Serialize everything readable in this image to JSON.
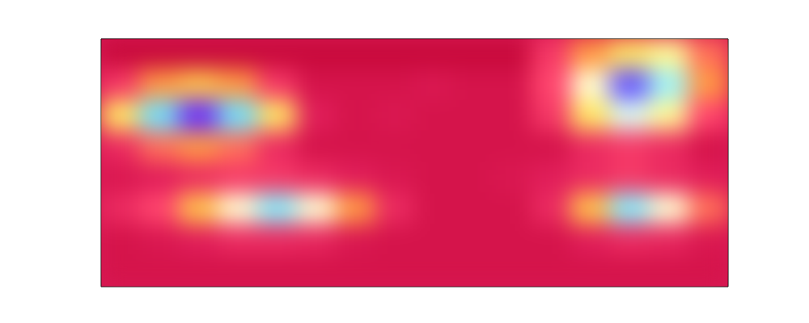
{
  "chart_data": {
    "type": "heatmap",
    "x": [
      0.5,
      1.5,
      2.5,
      3.5,
      4.5,
      5.5,
      6.5,
      7.5,
      8.5,
      9.5,
      10.5,
      11.5,
      12.5,
      13.5,
      14.5,
      15.5
    ],
    "y": [
      7.5,
      6.5,
      5.5,
      4.5,
      3.5,
      2.5,
      1.5,
      0.5
    ],
    "cells": [
      [
        0.15,
        0.15,
        0.15,
        0.15,
        0.15,
        0.15,
        0.15,
        0.15,
        0.15,
        0.15,
        0.15,
        0.35,
        0.5,
        0.6,
        0.65,
        0.45
      ],
      [
        0.35,
        0.5,
        0.55,
        0.5,
        0.35,
        0.2,
        0.2,
        0.2,
        0.22,
        0.2,
        0.2,
        0.4,
        0.7,
        0.95,
        0.8,
        0.5
      ],
      [
        0.6,
        0.85,
        0.98,
        0.85,
        0.6,
        0.25,
        0.2,
        0.22,
        0.2,
        0.2,
        0.2,
        0.35,
        0.6,
        0.75,
        0.65,
        0.4
      ],
      [
        0.3,
        0.45,
        0.5,
        0.45,
        0.3,
        0.2,
        0.2,
        0.2,
        0.2,
        0.2,
        0.2,
        0.2,
        0.3,
        0.35,
        0.3,
        0.2
      ],
      [
        0.22,
        0.25,
        0.3,
        0.35,
        0.35,
        0.3,
        0.25,
        0.22,
        0.2,
        0.2,
        0.22,
        0.25,
        0.3,
        0.35,
        0.3,
        0.25
      ],
      [
        0.3,
        0.4,
        0.55,
        0.7,
        0.82,
        0.7,
        0.5,
        0.3,
        0.2,
        0.2,
        0.2,
        0.3,
        0.55,
        0.82,
        0.7,
        0.45
      ],
      [
        0.2,
        0.22,
        0.25,
        0.3,
        0.3,
        0.28,
        0.22,
        0.2,
        0.2,
        0.2,
        0.2,
        0.2,
        0.25,
        0.3,
        0.28,
        0.22
      ],
      [
        0.2,
        0.2,
        0.2,
        0.2,
        0.2,
        0.2,
        0.2,
        0.2,
        0.2,
        0.2,
        0.2,
        0.2,
        0.2,
        0.2,
        0.2,
        0.2
      ]
    ],
    "xlim": [
      0,
      16
    ],
    "ylim": [
      0,
      8
    ],
    "tick_labels": false
  }
}
